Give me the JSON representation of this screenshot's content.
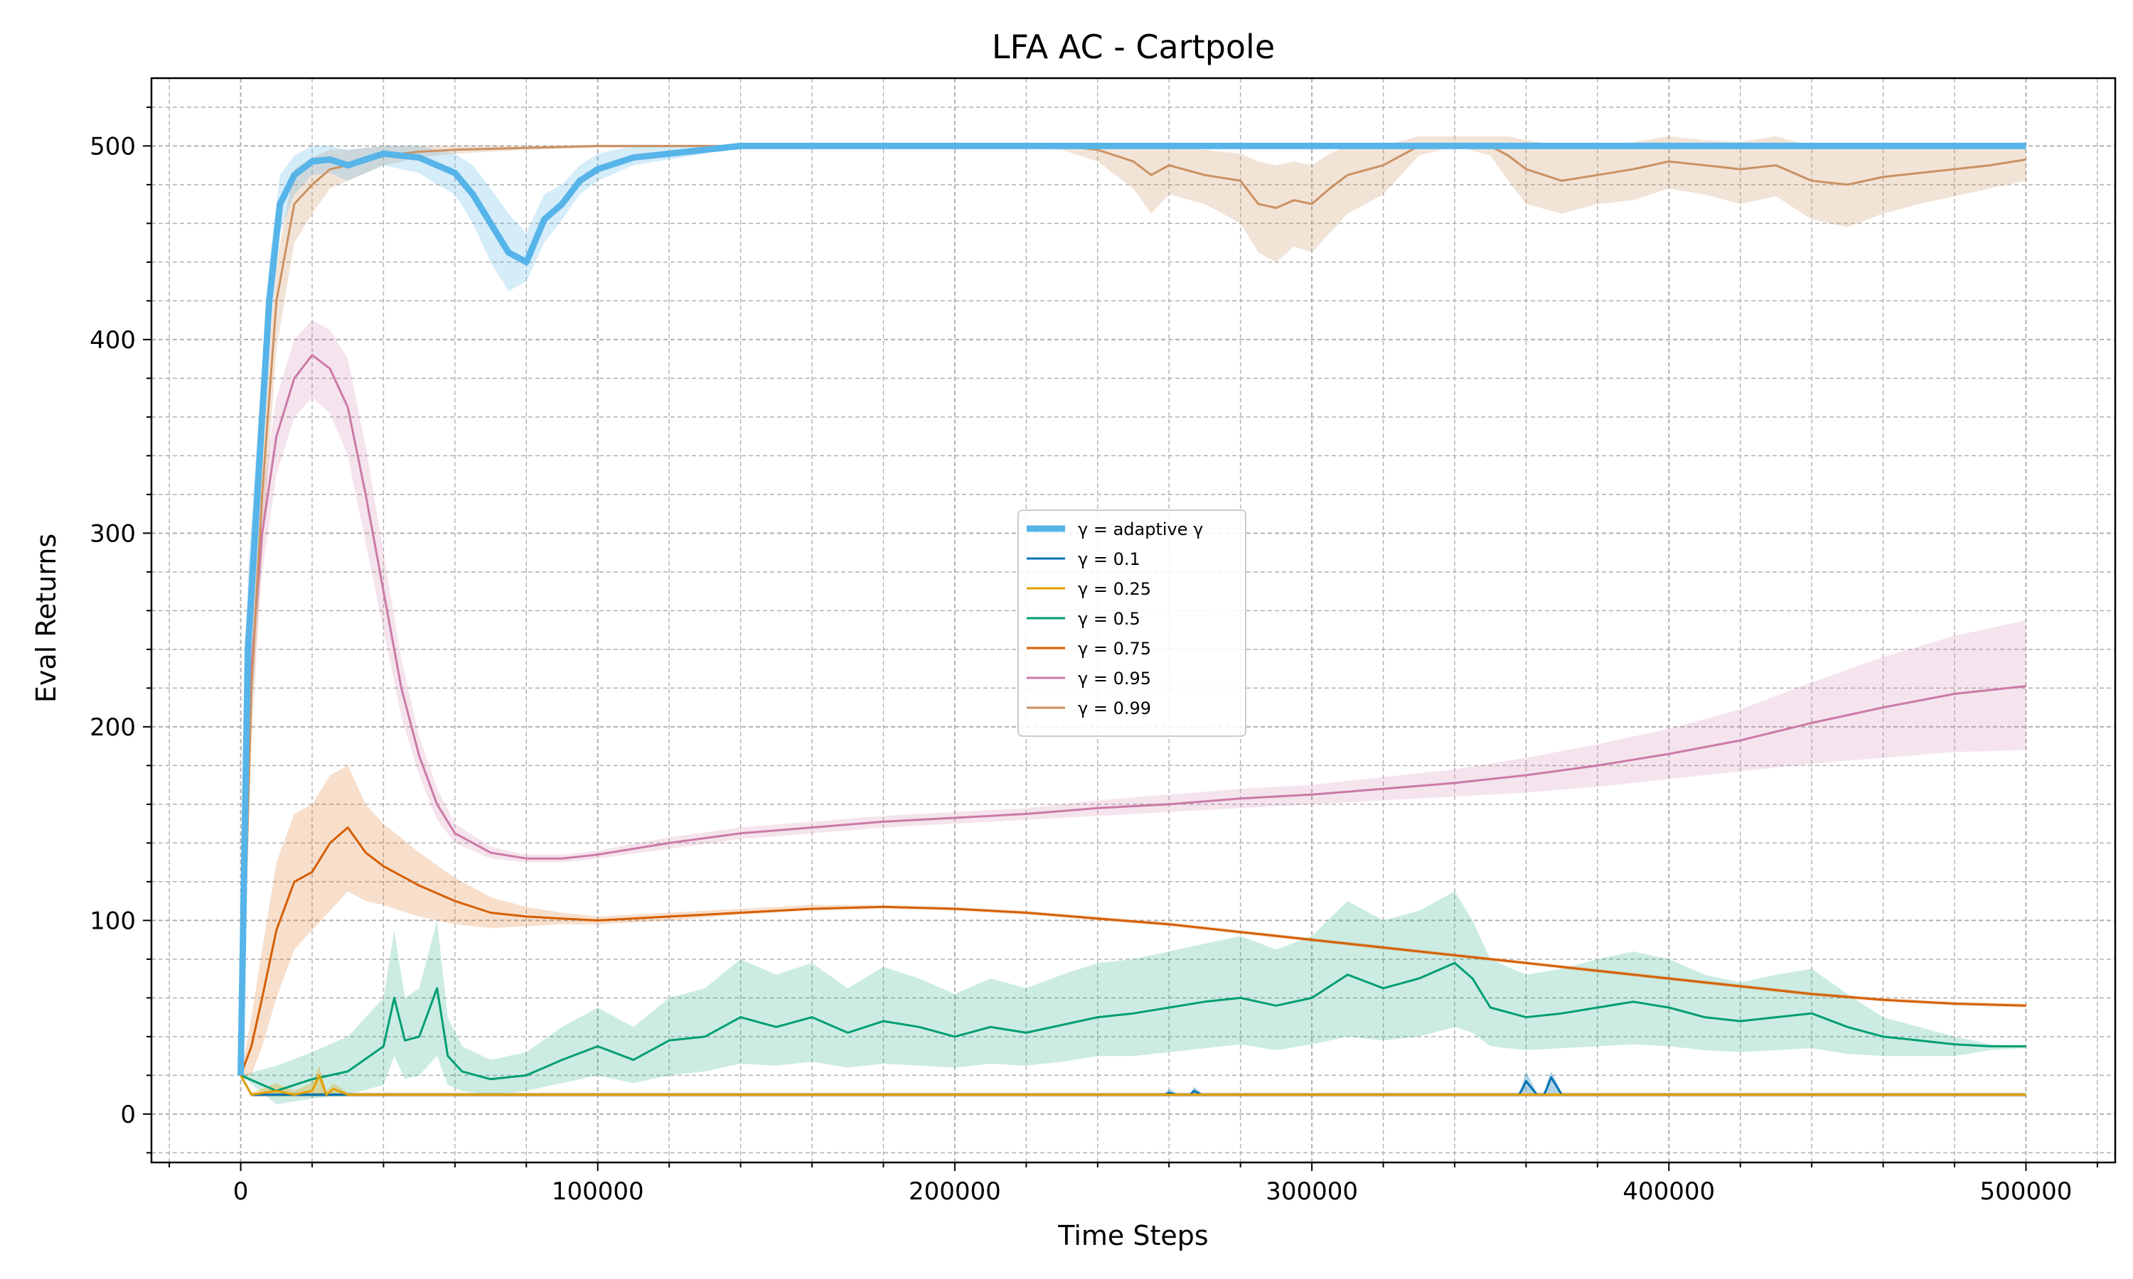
{
  "chart_data": {
    "type": "line",
    "title": "LFA AC - Cartpole",
    "xlabel": "Time Steps",
    "ylabel": "Eval Returns",
    "xlim": [
      -25000,
      525000
    ],
    "ylim": [
      -25,
      535
    ],
    "xticks": [
      0,
      100000,
      200000,
      300000,
      400000,
      500000
    ],
    "xtick_labels": [
      "0",
      "100000",
      "200000",
      "300000",
      "400000",
      "500000"
    ],
    "yticks": [
      0,
      100,
      200,
      300,
      400,
      500
    ],
    "ytick_labels": [
      "0",
      "100",
      "200",
      "300",
      "400",
      "500"
    ],
    "grid": true,
    "minor_grid": true,
    "legend_position": "center",
    "series": [
      {
        "name": "γ = adaptive γ",
        "color": "#56b4e9",
        "line_width": 9,
        "band": 0.25,
        "x": [
          0,
          2000,
          5000,
          8000,
          11000,
          15000,
          20000,
          25000,
          30000,
          40000,
          50000,
          55000,
          60000,
          65000,
          70000,
          75000,
          80000,
          85000,
          90000,
          95000,
          100000,
          110000,
          120000,
          130000,
          140000,
          500000
        ],
        "y": [
          20,
          240,
          330,
          420,
          470,
          485,
          492,
          493,
          490,
          496,
          494,
          490,
          486,
          475,
          460,
          445,
          440,
          462,
          470,
          482,
          488,
          494,
          496,
          498,
          500,
          500
        ],
        "lower": [
          20,
          200,
          300,
          400,
          455,
          475,
          485,
          486,
          482,
          490,
          486,
          480,
          475,
          460,
          440,
          425,
          430,
          450,
          462,
          475,
          482,
          490,
          493,
          496,
          500,
          500
        ],
        "upper": [
          20,
          280,
          360,
          440,
          485,
          495,
          500,
          500,
          498,
          500,
          500,
          498,
          496,
          490,
          478,
          465,
          455,
          475,
          480,
          490,
          496,
          500,
          500,
          500,
          500,
          500
        ]
      },
      {
        "name": "γ = 0.1",
        "color": "#0072b2",
        "line_width": 3,
        "band": 0.3,
        "x": [
          0,
          3000,
          100000,
          259000,
          260000,
          262000,
          266000,
          267000,
          269000,
          358000,
          359000,
          360000,
          363000,
          365000,
          366000,
          367000,
          370000,
          500000
        ],
        "y": [
          20,
          10,
          10,
          10,
          11,
          10,
          10,
          12,
          10,
          10,
          13,
          17,
          10,
          10,
          14,
          19,
          10,
          10
        ],
        "lower": [
          20,
          9,
          9,
          9,
          9,
          9,
          9,
          9,
          9,
          9,
          9,
          9,
          9,
          9,
          9,
          9,
          9,
          9
        ],
        "upper": [
          20,
          11,
          11,
          11,
          13,
          11,
          11,
          14,
          11,
          11,
          16,
          22,
          11,
          11,
          17,
          22,
          11,
          11
        ]
      },
      {
        "name": "γ = 0.25",
        "color": "#e69f00",
        "line_width": 3,
        "band": 0.3,
        "x": [
          0,
          3000,
          10000,
          15000,
          20000,
          22000,
          24000,
          26000,
          30000,
          500000
        ],
        "y": [
          20,
          10,
          12,
          10,
          12,
          20,
          10,
          13,
          10,
          10
        ],
        "lower": [
          20,
          9,
          9,
          9,
          9,
          9,
          9,
          9,
          9,
          9
        ],
        "upper": [
          20,
          11,
          16,
          12,
          16,
          25,
          12,
          16,
          11,
          11
        ]
      },
      {
        "name": "γ = 0.5",
        "color": "#009e73",
        "line_width": 3,
        "band": 0.2,
        "x": [
          0,
          10000,
          20000,
          30000,
          40000,
          43000,
          46000,
          50000,
          55000,
          58000,
          62000,
          70000,
          80000,
          90000,
          100000,
          110000,
          120000,
          130000,
          140000,
          150000,
          160000,
          170000,
          180000,
          190000,
          200000,
          210000,
          220000,
          230000,
          240000,
          250000,
          260000,
          270000,
          280000,
          290000,
          300000,
          310000,
          320000,
          330000,
          340000,
          345000,
          350000,
          360000,
          370000,
          380000,
          390000,
          400000,
          410000,
          420000,
          430000,
          440000,
          450000,
          460000,
          470000,
          480000,
          490000,
          500000
        ],
        "y": [
          20,
          12,
          18,
          22,
          35,
          60,
          38,
          40,
          65,
          30,
          22,
          18,
          20,
          28,
          35,
          28,
          38,
          40,
          50,
          45,
          50,
          42,
          48,
          45,
          40,
          45,
          42,
          46,
          50,
          52,
          55,
          58,
          60,
          56,
          60,
          72,
          65,
          70,
          78,
          70,
          55,
          50,
          52,
          55,
          58,
          55,
          50,
          48,
          50,
          52,
          45,
          40,
          38,
          36,
          35,
          35
        ],
        "lower": [
          20,
          5,
          8,
          10,
          15,
          30,
          18,
          20,
          30,
          15,
          12,
          10,
          12,
          16,
          20,
          16,
          20,
          22,
          26,
          25,
          27,
          24,
          26,
          25,
          24,
          26,
          25,
          27,
          30,
          30,
          32,
          34,
          36,
          33,
          36,
          40,
          38,
          40,
          45,
          42,
          35,
          33,
          34,
          35,
          36,
          35,
          33,
          32,
          33,
          34,
          31,
          30,
          30,
          30,
          33,
          34
        ],
        "upper": [
          20,
          25,
          32,
          40,
          60,
          95,
          60,
          65,
          100,
          50,
          35,
          28,
          32,
          45,
          55,
          45,
          60,
          65,
          80,
          72,
          78,
          65,
          76,
          70,
          62,
          70,
          65,
          72,
          78,
          80,
          84,
          88,
          92,
          85,
          92,
          110,
          100,
          105,
          115,
          100,
          80,
          72,
          75,
          80,
          84,
          80,
          72,
          68,
          72,
          75,
          62,
          50,
          45,
          40,
          36,
          35
        ]
      },
      {
        "name": "γ = 0.75",
        "color": "#d55e00",
        "line_width": 3,
        "band": 0.2,
        "x": [
          0,
          3000,
          6000,
          10000,
          15000,
          20000,
          25000,
          30000,
          35000,
          40000,
          50000,
          60000,
          70000,
          80000,
          90000,
          100000,
          120000,
          140000,
          160000,
          180000,
          200000,
          220000,
          240000,
          260000,
          280000,
          300000,
          320000,
          340000,
          360000,
          380000,
          400000,
          420000,
          440000,
          460000,
          480000,
          500000
        ],
        "y": [
          20,
          35,
          60,
          95,
          120,
          125,
          140,
          148,
          135,
          128,
          118,
          110,
          104,
          102,
          101,
          100,
          102,
          104,
          106,
          107,
          106,
          104,
          101,
          98,
          94,
          90,
          86,
          82,
          78,
          74,
          70,
          66,
          62,
          59,
          57,
          56
        ],
        "lower": [
          20,
          20,
          35,
          60,
          85,
          95,
          105,
          115,
          110,
          108,
          102,
          98,
          96,
          97,
          98,
          98,
          100,
          103,
          105,
          106,
          105,
          103,
          100,
          97,
          93,
          89,
          85,
          81,
          77,
          73,
          69,
          65,
          61,
          58,
          56,
          55
        ],
        "upper": [
          20,
          50,
          85,
          130,
          155,
          160,
          175,
          180,
          160,
          150,
          135,
          122,
          112,
          107,
          104,
          102,
          104,
          106,
          108,
          108,
          107,
          105,
          102,
          99,
          95,
          91,
          87,
          83,
          79,
          75,
          71,
          67,
          63,
          60,
          58,
          57
        ]
      },
      {
        "name": "γ = 0.95",
        "color": "#cc79a7",
        "line_width": 3,
        "band": 0.2,
        "x": [
          0,
          3000,
          6000,
          10000,
          15000,
          20000,
          25000,
          30000,
          35000,
          40000,
          45000,
          50000,
          55000,
          60000,
          70000,
          80000,
          90000,
          100000,
          120000,
          140000,
          160000,
          180000,
          200000,
          220000,
          240000,
          260000,
          280000,
          300000,
          320000,
          340000,
          360000,
          380000,
          400000,
          420000,
          440000,
          460000,
          480000,
          500000
        ],
        "y": [
          20,
          230,
          300,
          350,
          380,
          392,
          385,
          365,
          320,
          270,
          220,
          185,
          160,
          145,
          135,
          132,
          132,
          134,
          140,
          145,
          148,
          151,
          153,
          155,
          158,
          160,
          163,
          165,
          168,
          171,
          175,
          180,
          186,
          193,
          202,
          210,
          217,
          221
        ],
        "lower": [
          20,
          210,
          280,
          330,
          360,
          370,
          362,
          340,
          295,
          250,
          205,
          175,
          152,
          140,
          132,
          130,
          130,
          132,
          137,
          142,
          145,
          148,
          150,
          152,
          154,
          156,
          158,
          160,
          162,
          164,
          166,
          169,
          173,
          177,
          181,
          184,
          187,
          188
        ],
        "upper": [
          20,
          250,
          320,
          370,
          400,
          410,
          405,
          390,
          345,
          290,
          235,
          195,
          168,
          150,
          138,
          134,
          134,
          136,
          143,
          148,
          151,
          154,
          156,
          158,
          162,
          165,
          168,
          170,
          174,
          178,
          184,
          191,
          199,
          209,
          223,
          236,
          247,
          255
        ]
      },
      {
        "name": "γ = 0.99",
        "color": "#ca9161",
        "line_width": 3,
        "band": 0.25,
        "x": [
          0,
          3000,
          6000,
          10000,
          15000,
          20000,
          25000,
          30000,
          40000,
          50000,
          60000,
          80000,
          100000,
          200000,
          230000,
          240000,
          245000,
          250000,
          255000,
          260000,
          270000,
          280000,
          285000,
          290000,
          295000,
          300000,
          305000,
          310000,
          320000,
          330000,
          340000,
          350000,
          355000,
          360000,
          370000,
          380000,
          390000,
          400000,
          410000,
          420000,
          430000,
          440000,
          450000,
          460000,
          470000,
          480000,
          490000,
          500000
        ],
        "y": [
          20,
          220,
          320,
          420,
          470,
          480,
          488,
          490,
          495,
          497,
          498,
          499,
          500,
          500,
          500,
          498,
          495,
          492,
          485,
          490,
          485,
          482,
          470,
          468,
          472,
          470,
          478,
          485,
          490,
          500,
          500,
          500,
          495,
          488,
          482,
          485,
          488,
          492,
          490,
          488,
          490,
          482,
          480,
          484,
          486,
          488,
          490,
          493
        ],
        "lower": [
          20,
          190,
          290,
          395,
          450,
          465,
          478,
          482,
          490,
          494,
          496,
          498,
          499,
          500,
          498,
          492,
          485,
          478,
          465,
          475,
          470,
          460,
          445,
          440,
          448,
          445,
          455,
          465,
          475,
          495,
          500,
          495,
          482,
          470,
          465,
          470,
          472,
          478,
          475,
          470,
          474,
          462,
          458,
          465,
          470,
          474,
          478,
          482
        ],
        "upper": [
          20,
          250,
          350,
          440,
          488,
          494,
          498,
          498,
          500,
          500,
          500,
          500,
          500,
          500,
          500,
          500,
          500,
          500,
          500,
          500,
          498,
          496,
          492,
          490,
          492,
          490,
          496,
          500,
          500,
          505,
          505,
          505,
          505,
          503,
          500,
          500,
          502,
          505,
          503,
          502,
          505,
          500,
          500,
          500,
          500,
          500,
          500,
          502
        ]
      }
    ]
  }
}
